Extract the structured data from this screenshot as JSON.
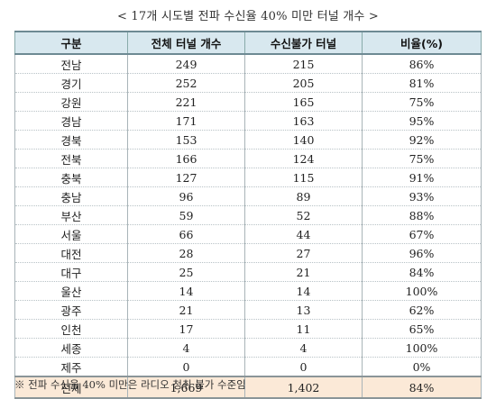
{
  "title": "< 17개 시도별 전파 수신율 40% 미만 터널 개수 >",
  "headers": [
    "구분",
    "전체 터널 개수",
    "수신불가 터널",
    "비율(%)"
  ],
  "rows": [
    [
      "전남",
      "249",
      "215",
      "86%"
    ],
    [
      "경기",
      "252",
      "205",
      "81%"
    ],
    [
      "강원",
      "221",
      "165",
      "75%"
    ],
    [
      "경남",
      "171",
      "163",
      "95%"
    ],
    [
      "경북",
      "153",
      "140",
      "92%"
    ],
    [
      "전북",
      "166",
      "124",
      "75%"
    ],
    [
      "충북",
      "127",
      "115",
      "91%"
    ],
    [
      "충남",
      "96",
      "89",
      "93%"
    ],
    [
      "부산",
      "59",
      "52",
      "88%"
    ],
    [
      "서울",
      "66",
      "44",
      "67%"
    ],
    [
      "대전",
      "28",
      "27",
      "96%"
    ],
    [
      "대구",
      "25",
      "21",
      "84%"
    ],
    [
      "울산",
      "14",
      "14",
      "100%"
    ],
    [
      "광주",
      "21",
      "13",
      "62%"
    ],
    [
      "인천",
      "17",
      "11",
      "65%"
    ],
    [
      "세종",
      "4",
      "4",
      "100%"
    ],
    [
      "제주",
      "0",
      "0",
      "0%"
    ]
  ],
  "total": [
    "전체",
    "1,669",
    "1,402",
    "84%"
  ],
  "note": "※ 전파 수신율 40% 미만은 라디오 청취 불가 수준임",
  "colors": {
    "header_bg": "#d8e8ef",
    "total_bg": "#fbe9d7"
  }
}
